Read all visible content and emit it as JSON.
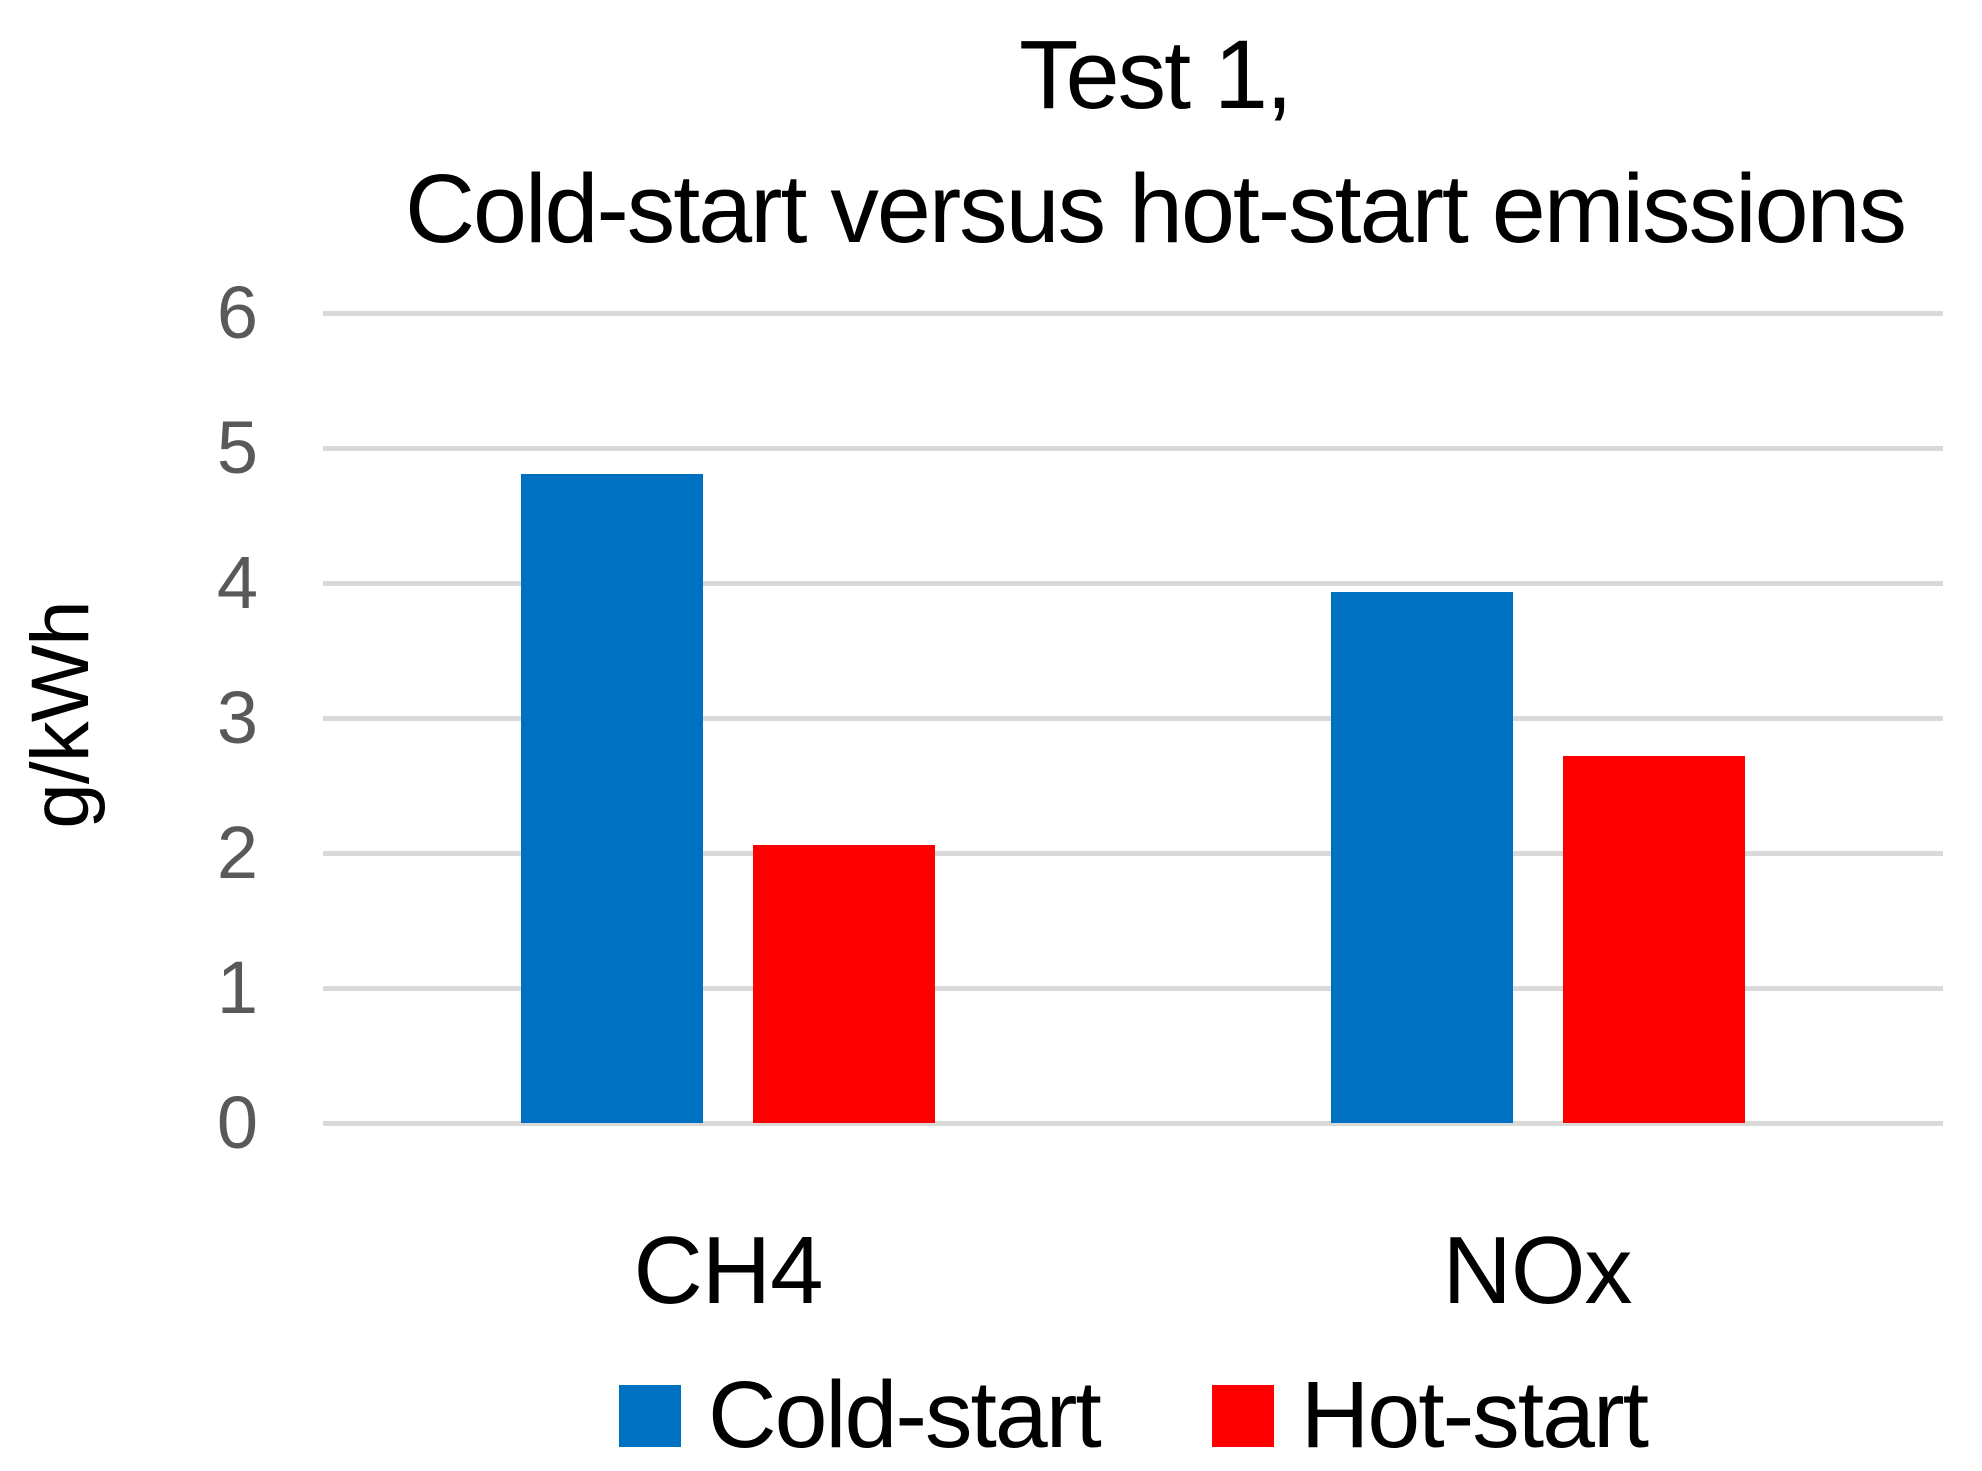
{
  "chart_data": {
    "type": "bar",
    "title_line1": "Test 1,",
    "title_line2": "Cold-start versus hot-start emissions",
    "ylabel": "g/kWh",
    "xlabel": "",
    "categories": [
      "CH4",
      "NOx"
    ],
    "series": [
      {
        "name": "Cold-start",
        "color": "#0070C0",
        "values": [
          4.81,
          3.93
        ]
      },
      {
        "name": "Hot-start",
        "color": "#FF0000",
        "values": [
          2.06,
          2.72
        ]
      }
    ],
    "ylim": [
      0,
      6
    ],
    "yticks": [
      0,
      1,
      2,
      3,
      4,
      5,
      6
    ],
    "grid": true,
    "gridline_color": "#D9D9D9",
    "tick_label_color": "#595959",
    "text_color": "#000000",
    "legend_position": "bottom"
  }
}
